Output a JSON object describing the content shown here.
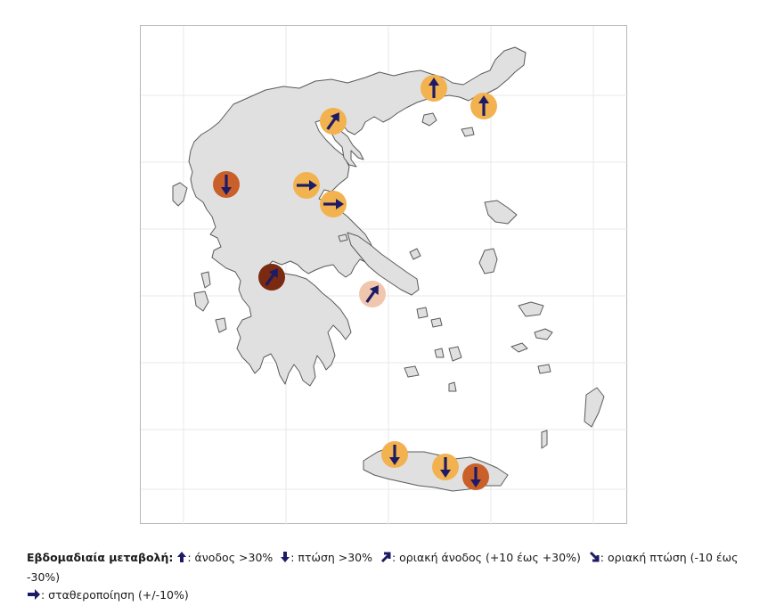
{
  "colors": {
    "land": "#e0e0e0",
    "coast": "#5a5a5a",
    "grid": "#e8e8e8",
    "arrow": "#1d1b66",
    "level_light": "#f2b24f",
    "level_medium": "#c9602a",
    "level_dark": "#7a2a10",
    "level_pale": "#f0c6ae"
  },
  "markers": [
    {
      "id": "evros",
      "direction": "up",
      "level": "light"
    },
    {
      "id": "rodopi",
      "direction": "up",
      "level": "light"
    },
    {
      "id": "thessaloniki",
      "direction": "up-right",
      "level": "light"
    },
    {
      "id": "ioannina",
      "direction": "down",
      "level": "medium"
    },
    {
      "id": "larisa",
      "direction": "right",
      "level": "light"
    },
    {
      "id": "magnesia",
      "direction": "right",
      "level": "light"
    },
    {
      "id": "aitoloakarnania",
      "direction": "up-right",
      "level": "dark"
    },
    {
      "id": "attiki",
      "direction": "up-right",
      "level": "pale"
    },
    {
      "id": "chania",
      "direction": "down",
      "level": "light"
    },
    {
      "id": "rethymno",
      "direction": "down",
      "level": "light"
    },
    {
      "id": "irakleio",
      "direction": "down",
      "level": "medium"
    }
  ],
  "legend": {
    "title": "Εβδομαδιαία μεταβολή:",
    "items": [
      {
        "icon": "arrow-up-icon",
        "label": ": άνοδος >30%"
      },
      {
        "icon": "arrow-down-icon",
        "label": ": πτώση >30%"
      },
      {
        "icon": "arrow-up-right-icon",
        "label": ": οριακή άνοδος (+10 έως +30%)"
      },
      {
        "icon": "arrow-down-right-icon",
        "label": ": οριακή πτώση  (-10 έως -30%)"
      },
      {
        "icon": "arrow-right-icon",
        "label": ":  σταθεροποίηση (+/-10%)"
      }
    ]
  }
}
